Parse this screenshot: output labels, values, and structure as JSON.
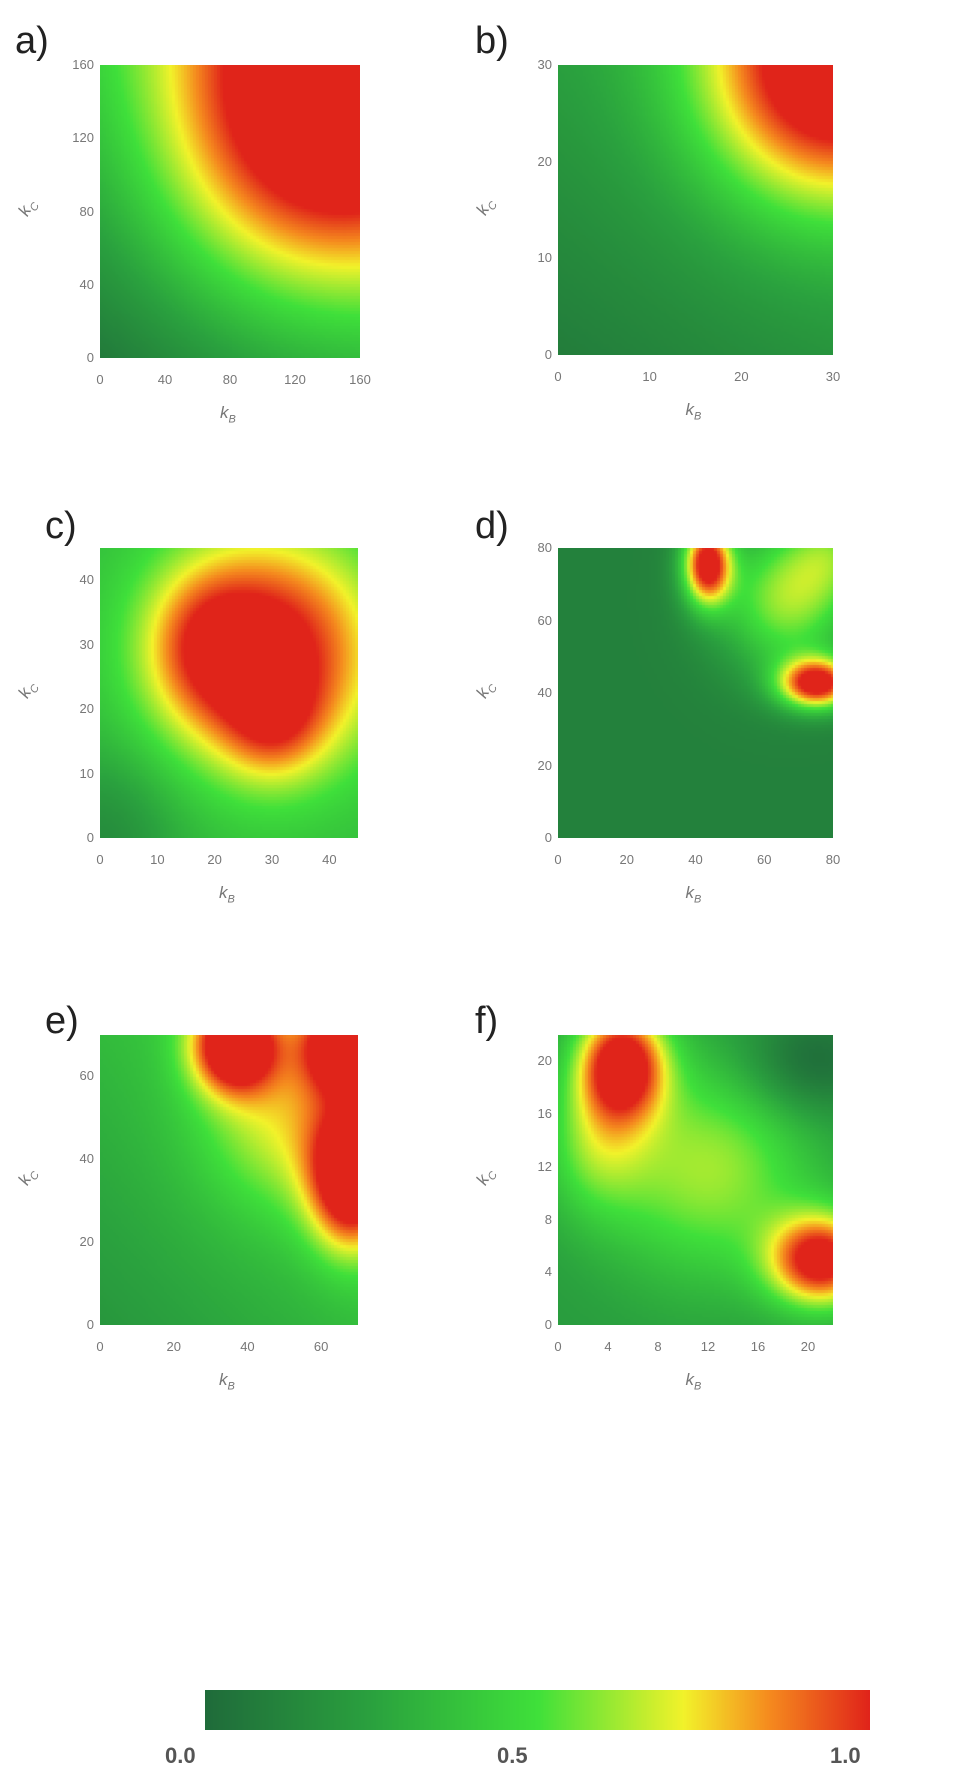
{
  "colormap": {
    "stops": [
      {
        "v": 0.0,
        "color": "#1f6b3a"
      },
      {
        "v": 0.25,
        "color": "#2aa13e"
      },
      {
        "v": 0.5,
        "color": "#3fe03a"
      },
      {
        "v": 0.72,
        "color": "#f2f22a"
      },
      {
        "v": 0.85,
        "color": "#f58a1e"
      },
      {
        "v": 1.0,
        "color": "#e0241a"
      }
    ],
    "tick_labels": [
      "0.0",
      "0.5",
      "1.0"
    ]
  },
  "chart_data": [
    {
      "type": "heatmap",
      "panel_label": "a)",
      "xlabel": "k",
      "xsub": "B",
      "ylabel": "k",
      "ysub": "C",
      "xlim": [
        0,
        160
      ],
      "ylim": [
        0,
        160
      ],
      "x_ticks": [
        "0",
        "40",
        "80",
        "120",
        "160"
      ],
      "y_ticks": [
        "0",
        "40",
        "80",
        "120",
        "160"
      ],
      "field": {
        "base": 0.05,
        "gx": 0.2,
        "gy": 0.3,
        "blobs": [
          {
            "x": 150,
            "y": 150,
            "sx": 70,
            "sy": 70,
            "a": 0.85
          },
          {
            "x": 100,
            "y": 100,
            "sx": 60,
            "sy": 60,
            "a": 0.15
          }
        ]
      }
    },
    {
      "type": "heatmap",
      "panel_label": "b)",
      "xlabel": "k",
      "xsub": "B",
      "ylabel": "k",
      "ysub": "C",
      "xlim": [
        0,
        30
      ],
      "ylim": [
        0,
        30
      ],
      "x_ticks": [
        "0",
        "10",
        "20",
        "30"
      ],
      "y_ticks": [
        "0",
        "10",
        "20",
        "30"
      ],
      "field": {
        "base": 0.08,
        "gx": 0.1,
        "gy": 0.15,
        "blobs": [
          {
            "x": 30,
            "y": 30,
            "sx": 10,
            "sy": 10,
            "a": 0.95
          }
        ]
      }
    },
    {
      "type": "heatmap",
      "panel_label": "c)",
      "xlabel": "k",
      "xsub": "B",
      "ylabel": "k",
      "ysub": "C",
      "xlim": [
        0,
        45
      ],
      "ylim": [
        0,
        45
      ],
      "x_ticks": [
        "0",
        "10",
        "20",
        "30",
        "40"
      ],
      "y_ticks": [
        "0",
        "10",
        "20",
        "30",
        "40"
      ],
      "field": {
        "base": 0.35,
        "gx": 0.0,
        "gy": 0.0,
        "blobs": [
          {
            "x": 29,
            "y": 29,
            "sx": 14,
            "sy": 13,
            "a": 0.75
          },
          {
            "x": 18,
            "y": 30,
            "sx": 7,
            "sy": 8,
            "a": 0.25
          },
          {
            "x": 30,
            "y": 18,
            "sx": 6,
            "sy": 6,
            "a": 0.25
          },
          {
            "x": 0,
            "y": 0,
            "sx": 10,
            "sy": 10,
            "a": -0.2
          }
        ]
      }
    },
    {
      "type": "heatmap",
      "panel_label": "d)",
      "xlabel": "k",
      "xsub": "B",
      "ylabel": "k",
      "ysub": "C",
      "xlim": [
        0,
        80
      ],
      "ylim": [
        0,
        80
      ],
      "x_ticks": [
        "0",
        "20",
        "40",
        "60",
        "80"
      ],
      "y_ticks": [
        "0",
        "20",
        "40",
        "60",
        "80"
      ],
      "field": {
        "base": 0.1,
        "gx": 0.0,
        "gy": 0.0,
        "blobs": [
          {
            "x": 43,
            "y": 76,
            "sx": 5,
            "sy": 8,
            "a": 0.95
          },
          {
            "x": 75,
            "y": 43,
            "sx": 8,
            "sy": 5,
            "a": 0.95
          },
          {
            "x": 66,
            "y": 66,
            "sx": 14,
            "sy": 14,
            "a": 0.5
          },
          {
            "x": 80,
            "y": 80,
            "sx": 10,
            "sy": 10,
            "a": 0.3
          }
        ]
      }
    },
    {
      "type": "heatmap",
      "panel_label": "e)",
      "xlabel": "k",
      "xsub": "B",
      "ylabel": "k",
      "ysub": "C",
      "xlim": [
        0,
        70
      ],
      "ylim": [
        0,
        70
      ],
      "x_ticks": [
        "0",
        "20",
        "40",
        "60"
      ],
      "y_ticks": [
        "0",
        "20",
        "40",
        "60"
      ],
      "field": {
        "base": 0.2,
        "gx": 0.15,
        "gy": 0.15,
        "blobs": [
          {
            "x": 36,
            "y": 68,
            "sx": 8,
            "sy": 8,
            "a": 0.85
          },
          {
            "x": 68,
            "y": 36,
            "sx": 8,
            "sy": 12,
            "a": 0.85
          },
          {
            "x": 66,
            "y": 68,
            "sx": 8,
            "sy": 8,
            "a": 0.75
          },
          {
            "x": 50,
            "y": 50,
            "sx": 16,
            "sy": 16,
            "a": 0.3
          }
        ]
      }
    },
    {
      "type": "heatmap",
      "panel_label": "f)",
      "xlabel": "k",
      "xsub": "B",
      "ylabel": "k",
      "ysub": "C",
      "xlim": [
        0,
        22
      ],
      "ylim": [
        0,
        22
      ],
      "x_ticks": [
        "0",
        "4",
        "8",
        "12",
        "16",
        "20"
      ],
      "y_ticks": [
        "0",
        "4",
        "8",
        "12",
        "16",
        "20"
      ],
      "field": {
        "base": 0.22,
        "gx": 0.0,
        "gy": 0.0,
        "blobs": [
          {
            "x": 5,
            "y": 20,
            "sx": 2.5,
            "sy": 3,
            "a": 0.85
          },
          {
            "x": 21,
            "y": 5,
            "sx": 3,
            "sy": 2.5,
            "a": 0.85
          },
          {
            "x": 12,
            "y": 12,
            "sx": 6,
            "sy": 6,
            "a": 0.4
          },
          {
            "x": 3,
            "y": 14,
            "sx": 3,
            "sy": 4,
            "a": 0.3
          },
          {
            "x": 20,
            "y": 20,
            "sx": 4,
            "sy": 3,
            "a": -0.25
          }
        ]
      }
    }
  ]
}
